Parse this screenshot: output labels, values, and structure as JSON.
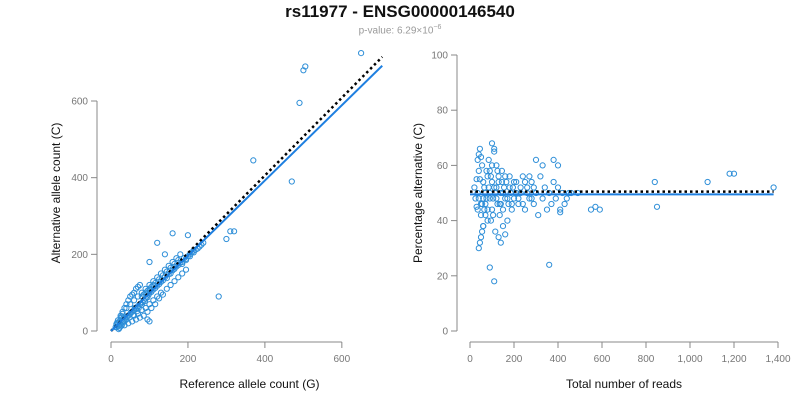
{
  "title": "rs11977 - ENSG00000146540",
  "subtitle": {
    "prefix": "p-value: 6.29×10",
    "exponent": "−6"
  },
  "colors": {
    "points": "#2f8fd8",
    "fit": "#1e7fe0",
    "reference": "#000000",
    "axis": "#888888"
  },
  "chart_data": [
    {
      "type": "scatter",
      "xlabel": "Reference allele count (G)",
      "ylabel": "Alternative allele count (C)",
      "xlim": [
        0,
        720
      ],
      "ylim": [
        0,
        720
      ],
      "xticks": [
        0,
        200,
        400,
        600
      ],
      "yticks": [
        0,
        200,
        400,
        600
      ],
      "xtick_labels": [
        "0",
        "200",
        "400",
        "600"
      ],
      "ytick_labels": [
        "0",
        "200",
        "400",
        "600"
      ],
      "fit_line": {
        "style": "solid",
        "points": [
          [
            0,
            0
          ],
          [
            705,
            692
          ]
        ]
      },
      "reference_line": {
        "style": "dotted",
        "points": [
          [
            0,
            0
          ],
          [
            705,
            715
          ]
        ]
      },
      "points": [
        [
          15,
          10
        ],
        [
          18,
          20
        ],
        [
          20,
          15
        ],
        [
          22,
          25
        ],
        [
          25,
          18
        ],
        [
          28,
          30
        ],
        [
          30,
          22
        ],
        [
          32,
          28
        ],
        [
          35,
          25
        ],
        [
          38,
          35
        ],
        [
          40,
          30
        ],
        [
          42,
          38
        ],
        [
          45,
          40
        ],
        [
          48,
          35
        ],
        [
          50,
          45
        ],
        [
          52,
          48
        ],
        [
          55,
          50
        ],
        [
          58,
          42
        ],
        [
          60,
          55
        ],
        [
          62,
          60
        ],
        [
          65,
          58
        ],
        [
          68,
          52
        ],
        [
          70,
          65
        ],
        [
          72,
          60
        ],
        [
          75,
          70
        ],
        [
          78,
          72
        ],
        [
          80,
          68
        ],
        [
          82,
          75
        ],
        [
          85,
          80
        ],
        [
          88,
          78
        ],
        [
          90,
          85
        ],
        [
          92,
          90
        ],
        [
          95,
          88
        ],
        [
          98,
          95
        ],
        [
          100,
          100
        ],
        [
          105,
          102
        ],
        [
          110,
          108
        ],
        [
          115,
          112
        ],
        [
          120,
          118
        ],
        [
          125,
          122
        ],
        [
          130,
          128
        ],
        [
          135,
          132
        ],
        [
          140,
          140
        ],
        [
          145,
          138
        ],
        [
          150,
          148
        ],
        [
          155,
          150
        ],
        [
          160,
          158
        ],
        [
          165,
          162
        ],
        [
          170,
          168
        ],
        [
          175,
          172
        ],
        [
          180,
          178
        ],
        [
          185,
          180
        ],
        [
          190,
          190
        ],
        [
          195,
          188
        ],
        [
          200,
          195
        ],
        [
          205,
          200
        ],
        [
          210,
          205
        ],
        [
          215,
          210
        ],
        [
          220,
          212
        ],
        [
          230,
          220
        ],
        [
          240,
          230
        ],
        [
          60,
          40
        ],
        [
          70,
          45
        ],
        [
          80,
          55
        ],
        [
          90,
          60
        ],
        [
          100,
          70
        ],
        [
          110,
          80
        ],
        [
          120,
          90
        ],
        [
          130,
          100
        ],
        [
          40,
          60
        ],
        [
          50,
          70
        ],
        [
          60,
          80
        ],
        [
          70,
          90
        ],
        [
          80,
          100
        ],
        [
          90,
          110
        ],
        [
          100,
          120
        ],
        [
          110,
          130
        ],
        [
          120,
          140
        ],
        [
          130,
          150
        ],
        [
          140,
          160
        ],
        [
          150,
          170
        ],
        [
          160,
          180
        ],
        [
          170,
          190
        ],
        [
          180,
          200
        ],
        [
          45,
          20
        ],
        [
          55,
          25
        ],
        [
          65,
          30
        ],
        [
          75,
          35
        ],
        [
          85,
          40
        ],
        [
          95,
          50
        ],
        [
          105,
          60
        ],
        [
          115,
          70
        ],
        [
          125,
          85
        ],
        [
          135,
          95
        ],
        [
          145,
          110
        ],
        [
          155,
          120
        ],
        [
          165,
          130
        ],
        [
          175,
          140
        ],
        [
          185,
          150
        ],
        [
          195,
          160
        ],
        [
          30,
          50
        ],
        [
          35,
          60
        ],
        [
          40,
          70
        ],
        [
          45,
          80
        ],
        [
          50,
          90
        ],
        [
          55,
          95
        ],
        [
          60,
          100
        ],
        [
          65,
          110
        ],
        [
          70,
          115
        ],
        [
          75,
          120
        ],
        [
          200,
          250
        ],
        [
          160,
          255
        ],
        [
          120,
          230
        ],
        [
          140,
          200
        ],
        [
          100,
          180
        ],
        [
          95,
          30
        ],
        [
          100,
          25
        ],
        [
          280,
          90
        ],
        [
          300,
          240
        ],
        [
          310,
          260
        ],
        [
          320,
          260
        ],
        [
          370,
          445
        ],
        [
          470,
          390
        ],
        [
          490,
          595
        ],
        [
          500,
          680
        ],
        [
          505,
          690
        ],
        [
          650,
          725
        ],
        [
          25,
          40
        ],
        [
          30,
          45
        ],
        [
          20,
          5
        ],
        [
          22,
          8
        ],
        [
          25,
          12
        ],
        [
          28,
          15
        ],
        [
          35,
          15
        ],
        [
          12,
          10
        ],
        [
          14,
          18
        ],
        [
          16,
          22
        ],
        [
          18,
          28
        ],
        [
          25,
          35
        ],
        [
          28,
          38
        ],
        [
          85,
          95
        ],
        [
          95,
          105
        ],
        [
          105,
          115
        ],
        [
          115,
          125
        ],
        [
          125,
          135
        ],
        [
          135,
          145
        ],
        [
          145,
          155
        ],
        [
          155,
          165
        ],
        [
          165,
          175
        ],
        [
          175,
          185
        ],
        [
          185,
          175
        ],
        [
          195,
          185
        ],
        [
          205,
          195
        ],
        [
          215,
          205
        ],
        [
          225,
          215
        ],
        [
          235,
          225
        ],
        [
          80,
          90
        ],
        [
          90,
          100
        ],
        [
          100,
          110
        ],
        [
          110,
          120
        ]
      ]
    },
    {
      "type": "scatter",
      "xlabel": "Total number of reads",
      "ylabel": "Percentage alternative (C)",
      "xlim": [
        0,
        1400
      ],
      "ylim": [
        0,
        100
      ],
      "xticks": [
        0,
        200,
        400,
        600,
        800,
        1000,
        1200,
        1400
      ],
      "yticks": [
        0,
        20,
        40,
        60,
        80,
        100
      ],
      "xtick_labels": [
        "0",
        "200",
        "400",
        "600",
        "800",
        "1,000",
        "1,200",
        "1,400"
      ],
      "ytick_labels": [
        "0",
        "20",
        "40",
        "60",
        "80",
        "100"
      ],
      "fit_line": {
        "style": "solid",
        "points": [
          [
            0,
            49.5
          ],
          [
            1380,
            49.5
          ]
        ]
      },
      "reference_line": {
        "style": "dotted",
        "points": [
          [
            0,
            50.5
          ],
          [
            1380,
            50.5
          ]
        ]
      },
      "points": [
        [
          30,
          45
        ],
        [
          35,
          50
        ],
        [
          40,
          48
        ],
        [
          45,
          55
        ],
        [
          50,
          42
        ],
        [
          55,
          60
        ],
        [
          60,
          38
        ],
        [
          65,
          52
        ],
        [
          70,
          46
        ],
        [
          75,
          58
        ],
        [
          80,
          44
        ],
        [
          85,
          62
        ],
        [
          90,
          50
        ],
        [
          95,
          40
        ],
        [
          100,
          54
        ],
        [
          105,
          48
        ],
        [
          110,
          65
        ],
        [
          115,
          36
        ],
        [
          120,
          52
        ],
        [
          125,
          46
        ],
        [
          130,
          56
        ],
        [
          135,
          42
        ],
        [
          140,
          50
        ],
        [
          145,
          58
        ],
        [
          150,
          44
        ],
        [
          155,
          52
        ],
        [
          160,
          48
        ],
        [
          165,
          54
        ],
        [
          170,
          40
        ],
        [
          175,
          46
        ],
        [
          180,
          56
        ],
        [
          185,
          50
        ],
        [
          190,
          44
        ],
        [
          195,
          52
        ],
        [
          200,
          48
        ],
        [
          210,
          54
        ],
        [
          220,
          46
        ],
        [
          230,
          50
        ],
        [
          240,
          56
        ],
        [
          250,
          44
        ],
        [
          260,
          52
        ],
        [
          270,
          48
        ],
        [
          280,
          54
        ],
        [
          290,
          46
        ],
        [
          300,
          50
        ],
        [
          310,
          42
        ],
        [
          320,
          56
        ],
        [
          330,
          48
        ],
        [
          340,
          52
        ],
        [
          350,
          44
        ],
        [
          360,
          50
        ],
        [
          370,
          46
        ],
        [
          380,
          54
        ],
        [
          390,
          48
        ],
        [
          400,
          52
        ],
        [
          410,
          44
        ],
        [
          420,
          50
        ],
        [
          430,
          46
        ],
        [
          440,
          48
        ],
        [
          450,
          50
        ],
        [
          40,
          30
        ],
        [
          45,
          32
        ],
        [
          50,
          34
        ],
        [
          55,
          36
        ],
        [
          60,
          38
        ],
        [
          35,
          62
        ],
        [
          40,
          64
        ],
        [
          45,
          66
        ],
        [
          50,
          63
        ],
        [
          100,
          68
        ],
        [
          110,
          66
        ],
        [
          120,
          60
        ],
        [
          130,
          34
        ],
        [
          140,
          32
        ],
        [
          150,
          38
        ],
        [
          90,
          23
        ],
        [
          110,
          18
        ],
        [
          160,
          35
        ],
        [
          360,
          24
        ],
        [
          300,
          62
        ],
        [
          330,
          60
        ],
        [
          380,
          62
        ],
        [
          400,
          60
        ],
        [
          410,
          43
        ],
        [
          460,
          50
        ],
        [
          490,
          50
        ],
        [
          550,
          44
        ],
        [
          570,
          45
        ],
        [
          590,
          44
        ],
        [
          840,
          54
        ],
        [
          850,
          45
        ],
        [
          1080,
          54
        ],
        [
          1180,
          57
        ],
        [
          1200,
          57
        ],
        [
          1380,
          52
        ],
        [
          20,
          52
        ],
        [
          25,
          48
        ],
        [
          30,
          55
        ],
        [
          35,
          44
        ],
        [
          40,
          58
        ],
        [
          50,
          46
        ],
        [
          60,
          54
        ],
        [
          70,
          50
        ],
        [
          80,
          56
        ],
        [
          90,
          48
        ],
        [
          100,
          44
        ],
        [
          110,
          52
        ],
        [
          120,
          48
        ],
        [
          130,
          54
        ],
        [
          140,
          46
        ],
        [
          150,
          50
        ],
        [
          160,
          56
        ],
        [
          170,
          48
        ],
        [
          180,
          52
        ],
        [
          190,
          46
        ],
        [
          200,
          54
        ],
        [
          210,
          50
        ],
        [
          220,
          48
        ],
        [
          230,
          52
        ],
        [
          240,
          46
        ],
        [
          250,
          54
        ],
        [
          260,
          50
        ],
        [
          270,
          56
        ],
        [
          280,
          48
        ],
        [
          290,
          52
        ],
        [
          60,
          48
        ],
        [
          70,
          42
        ],
        [
          80,
          40
        ],
        [
          90,
          58
        ],
        [
          100,
          60
        ],
        [
          55,
          46
        ],
        [
          65,
          44
        ],
        [
          75,
          48
        ],
        [
          85,
          52
        ],
        [
          95,
          56
        ],
        [
          105,
          42
        ],
        [
          115,
          50
        ],
        [
          125,
          58
        ],
        [
          135,
          46
        ],
        [
          145,
          54
        ]
      ]
    }
  ]
}
